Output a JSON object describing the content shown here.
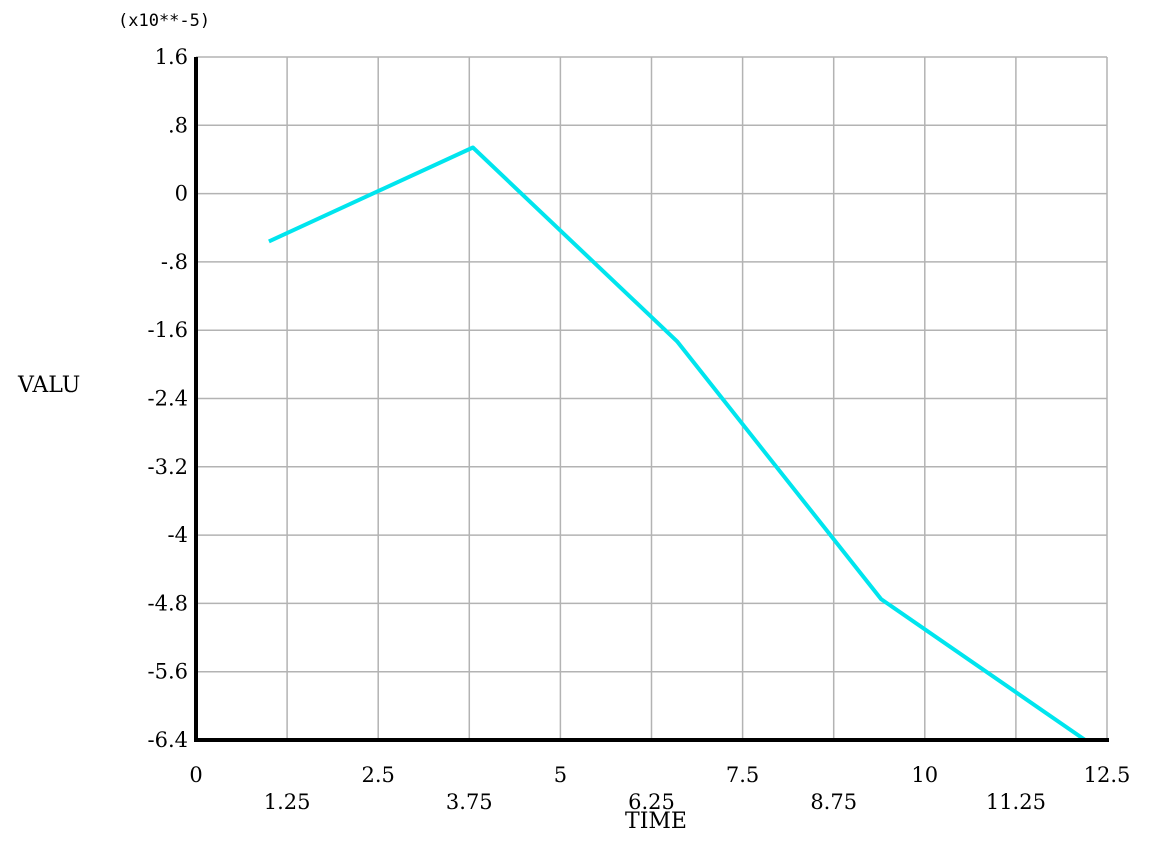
{
  "chart_data": {
    "type": "line",
    "title": "",
    "xlabel": "TIME",
    "ylabel": "VALU",
    "y_multiplier_label": "(x10**-5)",
    "xlim": [
      0,
      12.5
    ],
    "ylim": [
      -6.4,
      1.6
    ],
    "x_ticks_upper": [
      "0",
      "2.5",
      "5",
      "7.5",
      "10",
      "12.5"
    ],
    "x_ticks_lower": [
      "1.25",
      "3.75",
      "6.25",
      "8.75",
      "11.25"
    ],
    "y_ticks": [
      "1.6",
      ".8",
      "0",
      "-.8",
      "-1.6",
      "-2.4",
      "-3.2",
      "-4",
      "-4.8",
      "-5.6",
      "-6.4"
    ],
    "grid": true,
    "series": [
      {
        "color": "#00e5ee",
        "x": [
          1,
          3.8,
          6.6,
          9.4,
          12.2
        ],
        "y": [
          -0.56,
          0.54,
          -1.73,
          -4.75,
          -6.4
        ]
      }
    ]
  },
  "colors": {
    "background": "#ffffff",
    "grid": "#b3b3b3",
    "axis": "#000000",
    "series": "#00e5ee"
  }
}
